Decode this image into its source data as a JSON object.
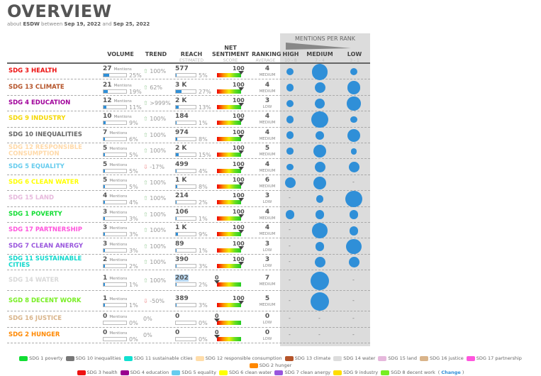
{
  "header": {
    "title": "OVERVIEW",
    "about": "about",
    "brand": "ESDW",
    "between": "between",
    "start": "Sep 19, 2022",
    "and": "and",
    "end": "Sep 25, 2022"
  },
  "columns": {
    "volume": "VOLUME",
    "trend": "TREND",
    "reach": "REACH",
    "reach_sub": "ESTIMATED",
    "sentiment": "NET SENTIMENT",
    "sentiment_sub": "SCORE",
    "ranking": "RANKING",
    "ranking_sub": "AVERAGE",
    "mentions_per_rank": "MENTIONS PER RANK",
    "high": "HIGH",
    "high_sub": "10 - 8",
    "medium": "MEDIUM",
    "medium_sub": "7 - 4",
    "low": "LOW",
    "low_sub": "3 - 1"
  },
  "mentions_unit": "Mentions",
  "colors": {
    "accent": "#2f8fd8"
  },
  "rows": [
    {
      "name": "SDG 3 HEALTH",
      "color": "#ee1111",
      "mentions": "27",
      "vol_pct": "25%",
      "vol_frac": 0.25,
      "trend_dir": "up",
      "trend": "100%",
      "reach": "577",
      "reach_pct": "5%",
      "reach_frac": 0.05,
      "sentiment": "100",
      "rank": "4",
      "rank_label": "MEDIUM",
      "bubbles": [
        0.3,
        0.85,
        0.3
      ]
    },
    {
      "name": "SDG 13 CLIMATE",
      "color": "#b5542a",
      "mentions": "21",
      "vol_pct": "19%",
      "vol_frac": 0.19,
      "trend_dir": "up",
      "trend": "62%",
      "reach": "3 K",
      "reach_pct": "27%",
      "reach_frac": 0.27,
      "sentiment": "100",
      "rank": "4",
      "rank_label": "MEDIUM",
      "bubbles": [
        0.3,
        0.5,
        0.65
      ]
    },
    {
      "name": "SDG 4 EDUCATION",
      "color": "#a0009a",
      "mentions": "12",
      "vol_pct": "11%",
      "vol_frac": 0.11,
      "trend_dir": "up",
      "trend": ">999%",
      "reach": "2 K",
      "reach_pct": "13%",
      "reach_frac": 0.13,
      "sentiment": "100",
      "rank": "3",
      "rank_label": "LOW",
      "bubbles": [
        0.3,
        0.45,
        0.7
      ]
    },
    {
      "name": "SDG 9 INDUSTRY",
      "color": "#f5d800",
      "mentions": "10",
      "vol_pct": "9%",
      "vol_frac": 0.09,
      "trend_dir": "up",
      "trend": "100%",
      "reach": "184",
      "reach_pct": "1%",
      "reach_frac": 0.01,
      "sentiment": "100",
      "rank": "4",
      "rank_label": "MEDIUM",
      "bubbles": [
        0.3,
        0.9,
        0.25
      ]
    },
    {
      "name": "SDG 10 INEQUALITIES",
      "color": "#666666",
      "mentions": "7",
      "vol_pct": "6%",
      "vol_frac": 0.06,
      "trend_dir": "up",
      "trend": "100%",
      "reach": "974",
      "reach_pct": "8%",
      "reach_frac": 0.08,
      "sentiment": "100",
      "rank": "4",
      "rank_label": "MEDIUM",
      "bubbles": [
        0.3,
        0.35,
        0.65
      ]
    },
    {
      "name": "SDG 12 RESPONSIBLE CONSUMPTION",
      "color": "#ffd9a8",
      "mentions": "5",
      "vol_pct": "5%",
      "vol_frac": 0.05,
      "trend_dir": "up",
      "trend": "100%",
      "reach": "2 K",
      "reach_pct": "15%",
      "reach_frac": 0.15,
      "sentiment": "100",
      "rank": "5",
      "rank_label": "MEDIUM",
      "bubbles": [
        0.25,
        0.65,
        0.22
      ]
    },
    {
      "name": "SDG 5 EQUALITY",
      "color": "#66ccee",
      "mentions": "5",
      "vol_pct": "5%",
      "vol_frac": 0.05,
      "trend_dir": "down",
      "trend": "-17%",
      "reach": "499",
      "reach_pct": "4%",
      "reach_frac": 0.04,
      "sentiment": "100",
      "rank": "4",
      "rank_label": "MEDIUM",
      "bubbles": [
        0.25,
        0.5,
        0.5
      ]
    },
    {
      "name": "SDG 6 CLEAN WATER",
      "color": "#ffff00",
      "mentions": "5",
      "vol_pct": "5%",
      "vol_frac": 0.05,
      "trend_dir": "up",
      "trend": "100%",
      "reach": "1 K",
      "reach_pct": "8%",
      "reach_frac": 0.08,
      "sentiment": "100",
      "rank": "6",
      "rank_label": "MEDIUM",
      "bubbles": [
        0.5,
        0.65,
        null
      ]
    },
    {
      "name": "SDG 15 LAND",
      "color": "#e6b8dc",
      "mentions": "4",
      "vol_pct": "4%",
      "vol_frac": 0.04,
      "trend_dir": "up",
      "trend": "100%",
      "reach": "214",
      "reach_pct": "2%",
      "reach_frac": 0.02,
      "sentiment": "100",
      "rank": "3",
      "rank_label": "LOW",
      "bubbles": [
        null,
        0.3,
        0.9
      ]
    },
    {
      "name": "SDG 1 POVERTY",
      "color": "#11dd33",
      "mentions": "3",
      "vol_pct": "3%",
      "vol_frac": 0.03,
      "trend_dir": "up",
      "trend": "100%",
      "reach": "106",
      "reach_pct": "1%",
      "reach_frac": 0.01,
      "sentiment": "100",
      "rank": "4",
      "rank_label": "MEDIUM",
      "bubbles": [
        0.4,
        0.4,
        0.4
      ]
    },
    {
      "name": "SDG 17 PARTNERSHIP",
      "color": "#ff55dd",
      "mentions": "3",
      "vol_pct": "3%",
      "vol_frac": 0.03,
      "trend_dir": "up",
      "trend": "100%",
      "reach": "1 K",
      "reach_pct": "9%",
      "reach_frac": 0.09,
      "sentiment": "100",
      "rank": "4",
      "rank_label": "MEDIUM",
      "bubbles": [
        null,
        0.8,
        0.4
      ]
    },
    {
      "name": "SDG 7 CLEAN ANERGY",
      "color": "#9955dd",
      "mentions": "3",
      "vol_pct": "3%",
      "vol_frac": 0.03,
      "trend_dir": "up",
      "trend": "100%",
      "reach": "89",
      "reach_pct": "1%",
      "reach_frac": 0.01,
      "sentiment": "100",
      "rank": "3",
      "rank_label": "LOW",
      "bubbles": [
        null,
        0.4,
        0.8
      ]
    },
    {
      "name": "SDG 11 SUSTAINABLE CITIES",
      "color": "#11d8cc",
      "mentions": "2",
      "vol_pct": "2%",
      "vol_frac": 0.02,
      "trend_dir": "up",
      "trend": "100%",
      "reach": "390",
      "reach_pct": "3%",
      "reach_frac": 0.03,
      "sentiment": "100",
      "rank": "3",
      "rank_label": "LOW",
      "bubbles": [
        null,
        0.5,
        0.5
      ]
    },
    {
      "name": "SDG 14 WATER",
      "color": "#d8d8d8",
      "mentions": "1",
      "vol_pct": "1%",
      "vol_frac": 0.01,
      "trend_dir": "up",
      "trend": "100%",
      "reach": "202",
      "reach_pct": "2%",
      "reach_frac": 0.02,
      "sentiment": "0",
      "rank": "7",
      "rank_label": "MEDIUM",
      "bubbles": [
        null,
        1.0,
        null
      ],
      "tall": true
    },
    {
      "name": "SGD 8 DECENT WORK",
      "color": "#77ee22",
      "mentions": "1",
      "vol_pct": "1%",
      "vol_frac": 0.01,
      "trend_dir": "down",
      "trend": "-50%",
      "reach": "389",
      "reach_pct": "3%",
      "reach_frac": 0.03,
      "sentiment": "100",
      "rank": "5",
      "rank_label": "MEDIUM",
      "bubbles": [
        null,
        1.0,
        null
      ],
      "tall": true
    },
    {
      "name": "SDG 16 JUSTICE",
      "color": "#d9b48a",
      "mentions": "0",
      "vol_pct": "0%",
      "vol_frac": 0,
      "trend_dir": "none",
      "trend": "0%",
      "reach": "0",
      "reach_pct": "0%",
      "reach_frac": 0,
      "sentiment": "0",
      "rank": "0",
      "rank_label": "LOW",
      "bubbles": [
        null,
        null,
        null
      ]
    },
    {
      "name": "SDG 2 HUNGER",
      "color": "#ff8800",
      "mentions": "0",
      "vol_pct": "0%",
      "vol_frac": 0,
      "trend_dir": "none",
      "trend": "0%",
      "reach": "0",
      "reach_pct": "0%",
      "reach_frac": 0,
      "sentiment": "0",
      "rank": "0",
      "rank_label": "LOW",
      "bubbles": [
        null,
        null,
        null
      ]
    }
  ],
  "legend": [
    {
      "label": "SDG 1 poverty",
      "color": "#11dd33"
    },
    {
      "label": "SDG 10 inequalities",
      "color": "#777777"
    },
    {
      "label": "SDG 11 sustainable cities",
      "color": "#11e0d0"
    },
    {
      "label": "SDG 12 responsible consumption",
      "color": "#ffddaa"
    },
    {
      "label": "SDG 13 climate",
      "color": "#b5542a"
    },
    {
      "label": "SDG 14 water",
      "color": "#dddddd"
    },
    {
      "label": "SDG 15 land",
      "color": "#e6b8dc"
    },
    {
      "label": "SDG 16 justice",
      "color": "#d9b48a"
    },
    {
      "label": "SDG 17 partnership",
      "color": "#ff55dd"
    },
    {
      "label": "SDG 2 hunger",
      "color": "#ff8800"
    },
    {
      "label": "SDG 3 health",
      "color": "#ee1111"
    },
    {
      "label": "SDG 4 education",
      "color": "#99008f"
    },
    {
      "label": "SDG 5 equality",
      "color": "#66ccee"
    },
    {
      "label": "SDG 6 clean water",
      "color": "#ffff00"
    },
    {
      "label": "SDG 7 clean anergy",
      "color": "#9955dd"
    },
    {
      "label": "SDG 9 industry",
      "color": "#ffdd00"
    },
    {
      "label": "SGD 8 decent work",
      "color": "#77ee22"
    }
  ],
  "legend_change": "Change"
}
